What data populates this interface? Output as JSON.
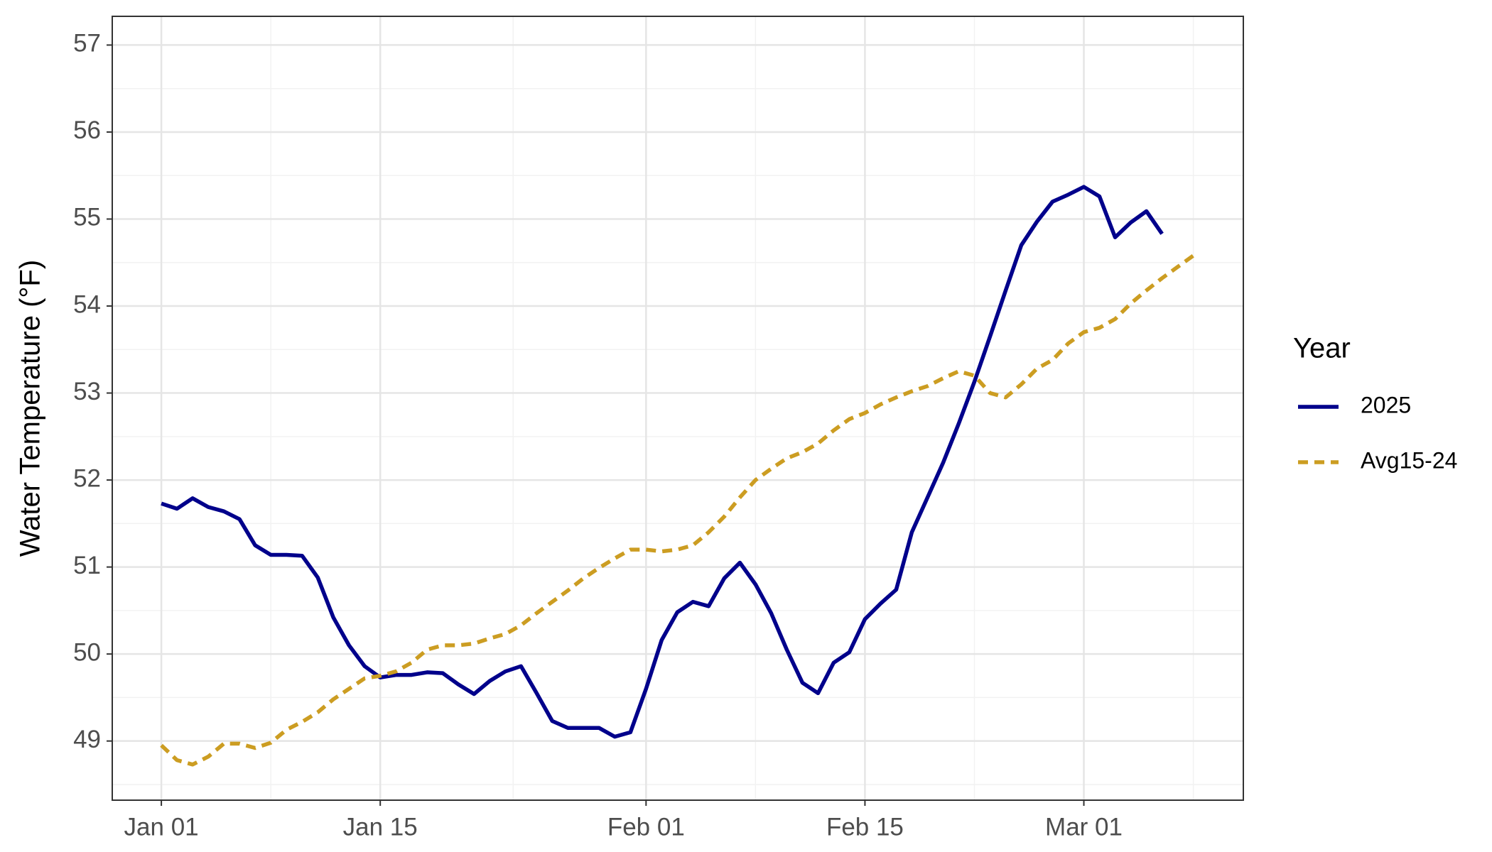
{
  "chart_data": {
    "type": "line",
    "y_label": "Water Temperature (°F)",
    "legend_title": "Year",
    "legend_position": "right",
    "grid": true,
    "xlim": [
      -3.14,
      69.2
    ],
    "ylim": [
      48.32,
      57.33
    ],
    "xticks": [
      {
        "value": 0,
        "label": "Jan 01"
      },
      {
        "value": 14,
        "label": "Jan 15"
      },
      {
        "value": 31,
        "label": "Feb 01"
      },
      {
        "value": 45,
        "label": "Feb 15"
      },
      {
        "value": 59,
        "label": "Mar 01"
      }
    ],
    "yticks": [
      49,
      50,
      51,
      52,
      53,
      54,
      55,
      56,
      57
    ],
    "xminorticks": [
      7,
      22.5,
      38,
      52,
      66
    ],
    "yminorticks": [
      48.5,
      49.5,
      50.5,
      51.5,
      52.5,
      53.5,
      54.5,
      55.5,
      56.5
    ],
    "series": [
      {
        "name": "2025",
        "color": "#00008b",
        "dash": "solid",
        "x": [
          0,
          1,
          2,
          3,
          4,
          5,
          6,
          7,
          8,
          9,
          10,
          11,
          12,
          13,
          14,
          15,
          16,
          17,
          18,
          19,
          20,
          21,
          22,
          23,
          24,
          25,
          26,
          27,
          28,
          29,
          30,
          31,
          32,
          33,
          34,
          35,
          36,
          37,
          38,
          39,
          40,
          41,
          42,
          43,
          44,
          45,
          46,
          47,
          48,
          49,
          50,
          51,
          52,
          53,
          54,
          55,
          56,
          57,
          58,
          59,
          60,
          61,
          62,
          63,
          64
        ],
        "values": [
          51.73,
          51.67,
          51.79,
          51.69,
          51.64,
          51.55,
          51.25,
          51.14,
          51.14,
          51.13,
          50.88,
          50.42,
          50.1,
          49.86,
          49.73,
          49.76,
          49.76,
          49.79,
          49.78,
          49.65,
          49.54,
          49.69,
          49.8,
          49.86,
          49.55,
          49.23,
          49.15,
          49.15,
          49.15,
          49.05,
          49.1,
          49.6,
          50.16,
          50.48,
          50.6,
          50.55,
          50.87,
          51.05,
          50.8,
          50.47,
          50.05,
          49.67,
          49.55,
          49.9,
          50.02,
          50.4,
          50.58,
          50.74,
          51.4,
          51.8,
          52.2,
          52.65,
          53.13,
          53.65,
          54.18,
          54.7,
          54.97,
          55.2,
          55.28,
          55.37,
          55.26,
          54.79,
          54.96,
          55.09,
          54.83
        ]
      },
      {
        "name": "Avg15-24",
        "color": "#cc9d22",
        "dash": "dashed",
        "x": [
          0,
          1,
          2,
          3,
          4,
          5,
          6,
          7,
          8,
          9,
          10,
          11,
          12,
          13,
          14,
          15,
          16,
          17,
          18,
          19,
          20,
          21,
          22,
          23,
          24,
          25,
          26,
          27,
          28,
          29,
          30,
          31,
          32,
          33,
          34,
          35,
          36,
          37,
          38,
          39,
          40,
          41,
          42,
          43,
          44,
          45,
          46,
          47,
          48,
          49,
          50,
          51,
          52,
          53,
          54,
          55,
          56,
          57,
          58,
          59,
          60,
          61,
          62,
          63,
          64,
          65,
          66
        ],
        "values": [
          48.95,
          48.78,
          48.73,
          48.82,
          48.97,
          48.97,
          48.92,
          48.98,
          49.13,
          49.22,
          49.33,
          49.48,
          49.6,
          49.72,
          49.75,
          49.8,
          49.9,
          50.05,
          50.1,
          50.1,
          50.12,
          50.18,
          50.23,
          50.33,
          50.47,
          50.6,
          50.73,
          50.87,
          50.99,
          51.1,
          51.2,
          51.2,
          51.18,
          51.2,
          51.25,
          51.4,
          51.58,
          51.8,
          52.0,
          52.13,
          52.25,
          52.32,
          52.42,
          52.57,
          52.7,
          52.77,
          52.87,
          52.95,
          53.02,
          53.08,
          53.17,
          53.25,
          53.2,
          53.0,
          52.95,
          53.1,
          53.28,
          53.38,
          53.57,
          53.7,
          53.75,
          53.85,
          54.03,
          54.18,
          54.32,
          54.45,
          54.58
        ]
      }
    ]
  }
}
